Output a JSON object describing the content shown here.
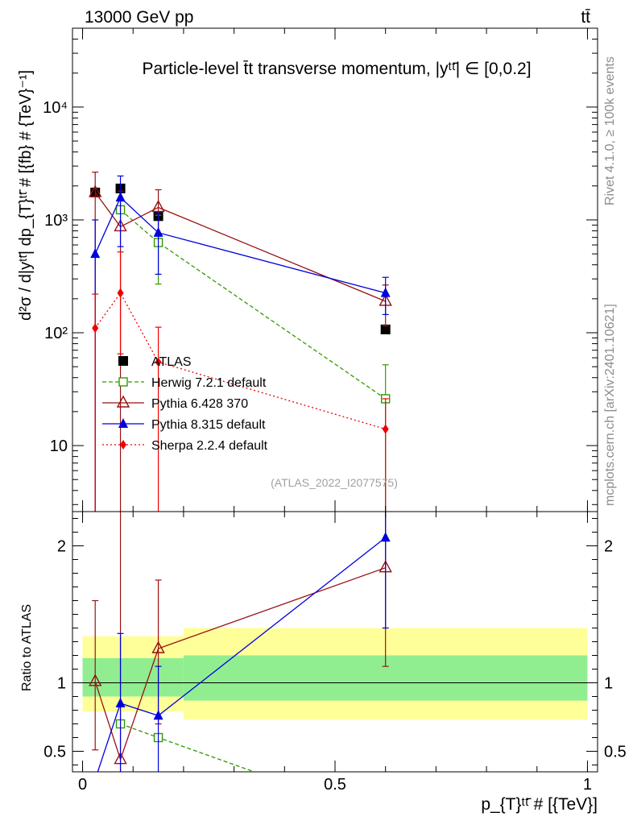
{
  "header": {
    "left": "13000 GeV pp",
    "right": "tt̄"
  },
  "side_labels": {
    "rivet": "Rivet 4.1.0, ≥ 100k events",
    "mcplots": "mcplots.cern.ch [arXiv:2401.10621]"
  },
  "chart_data": [
    {
      "type": "line",
      "panel": "main",
      "title": "Particle-level t̄t transverse momentum, |yᵗᵗ̄| ∈ [0,0.2]",
      "ylabel": "d²σ / d|yᵗᵗ̄| dp_{T}ᵗᵗ̄ # [{fb} # {TeV}⁻¹]",
      "xlabel": "p_{T}ᵗᵗ̄ # [{TeV}]",
      "yscale": "log",
      "ylim": [
        2.6,
        50000
      ],
      "xlim": [
        -0.02,
        1.02
      ],
      "yticks": [
        {
          "value": 10,
          "label": "10"
        },
        {
          "value": 100,
          "label": "10²"
        },
        {
          "value": 1000,
          "label": "10³"
        },
        {
          "value": 10000,
          "label": "10⁴"
        }
      ],
      "watermark": "(ATLAS_2022_I2077575)",
      "legend_position": "lower-left",
      "series": [
        {
          "name": "ATLAS",
          "color": "#000000",
          "marker": "square-filled",
          "dash": "",
          "x": [
            0.025,
            0.075,
            0.15,
            0.6
          ],
          "y": [
            1750,
            1900,
            1080,
            107
          ],
          "err_lo": [
            null,
            null,
            null,
            null
          ],
          "err_hi": [
            null,
            null,
            null,
            null
          ]
        },
        {
          "name": "Herwig 7.2.1 default",
          "color": "#339900",
          "marker": "square-open",
          "dash": "5,3",
          "x": [
            0.075,
            0.15,
            0.6
          ],
          "y": [
            1230,
            630,
            26
          ],
          "err_lo": [
            null,
            270,
            2.6
          ],
          "err_hi": [
            null,
            1100,
            52
          ]
        },
        {
          "name": "Pythia 6.428 370",
          "color": "#991111",
          "marker": "triangle-open",
          "dash": "",
          "x": [
            0.025,
            0.075,
            0.15,
            0.6
          ],
          "y": [
            1750,
            870,
            1290,
            190
          ],
          "err_lo": [
            2.6,
            2.6,
            740,
            115
          ],
          "err_hi": [
            2650,
            1800,
            1850,
            265
          ]
        },
        {
          "name": "Pythia 8.315 default",
          "color": "#0000dd",
          "marker": "triangle-filled",
          "dash": "",
          "x": [
            0.025,
            0.075,
            0.15,
            0.6
          ],
          "y": [
            500,
            1580,
            770,
            225
          ],
          "err_lo": [
            2.6,
            580,
            330,
            145
          ],
          "err_hi": [
            1000,
            2450,
            1150,
            310
          ]
        },
        {
          "name": "Sherpa 2.2.4 default",
          "color": "#ee0000",
          "marker": "diamond-filled",
          "dash": "2,3",
          "x": [
            0.025,
            0.075,
            0.15,
            0.6
          ],
          "y": [
            110,
            225,
            55,
            14
          ],
          "err_lo": [
            2.6,
            65,
            2.6,
            2.6
          ],
          "err_hi": [
            220,
            520,
            112,
            26
          ]
        }
      ]
    },
    {
      "type": "line",
      "panel": "ratio",
      "ylabel": "Ratio to ATLAS",
      "xlabel": "p_{T}ᵗᵗ̄ # [{TeV}]",
      "ylim": [
        0.35,
        2.25
      ],
      "xlim": [
        -0.02,
        1.02
      ],
      "yticks": [
        {
          "value": 0.5,
          "label": "0.5"
        },
        {
          "value": 1,
          "label": "1"
        },
        {
          "value": 2,
          "label": "2"
        }
      ],
      "xticks": [
        {
          "value": 0,
          "label": "0"
        },
        {
          "value": 0.5,
          "label": "0.5"
        },
        {
          "value": 1,
          "label": "1"
        }
      ],
      "bands": [
        {
          "x0": 0.0,
          "x1": 0.2,
          "inner": [
            0.9,
            1.18
          ],
          "outer": [
            0.79,
            1.34
          ]
        },
        {
          "x0": 0.2,
          "x1": 1.0,
          "inner": [
            0.87,
            1.2
          ],
          "outer": [
            0.73,
            1.4
          ]
        }
      ],
      "band_colors": {
        "inner": "#90ee90",
        "outer": "#ffff99"
      },
      "series": [
        {
          "name": "Herwig 7.2.1 default",
          "color": "#339900",
          "marker": "square-open",
          "dash": "5,3",
          "x": [
            0.075,
            0.15,
            0.34
          ],
          "y": [
            0.7,
            0.6,
            0.35
          ],
          "err_lo": [
            null,
            null,
            null
          ],
          "err_hi": [
            null,
            null,
            null
          ],
          "draw_marker": [
            true,
            true,
            false
          ]
        },
        {
          "name": "Pythia 6.428 370",
          "color": "#991111",
          "marker": "triangle-open",
          "dash": "",
          "x": [
            0.025,
            0.075,
            0.15,
            0.6
          ],
          "y": [
            1.01,
            0.44,
            1.25,
            1.84
          ],
          "err_lo": [
            0.51,
            0.35,
            0.7,
            1.12
          ],
          "err_hi": [
            1.6,
            2.25,
            1.75,
            2.25
          ],
          "draw_marker": [
            true,
            true,
            true,
            true
          ]
        },
        {
          "name": "Pythia 8.315 default",
          "color": "#0000dd",
          "marker": "triangle-filled",
          "dash": "",
          "x": [
            0.03,
            0.075,
            0.15,
            0.6
          ],
          "y": [
            0.35,
            0.85,
            0.76,
            2.06
          ],
          "err_lo": [
            null,
            0.35,
            0.35,
            1.4
          ],
          "err_hi": [
            null,
            1.36,
            1.12,
            2.25
          ],
          "draw_marker": [
            false,
            true,
            true,
            true
          ]
        }
      ]
    }
  ]
}
